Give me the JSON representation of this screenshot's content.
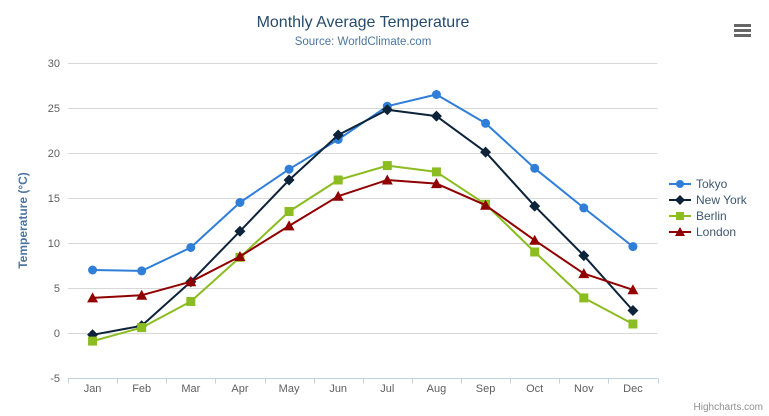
{
  "chart_data": {
    "type": "line",
    "title": "Monthly Average Temperature",
    "subtitle": "Source: WorldClimate.com",
    "xlabel": "",
    "ylabel": "Temperature (°C)",
    "ylim": [
      -5,
      30
    ],
    "yticks": [
      30,
      25,
      20,
      15,
      10,
      5,
      0,
      -5
    ],
    "grid": true,
    "legend_position": "right",
    "categories": [
      "Jan",
      "Feb",
      "Mar",
      "Apr",
      "May",
      "Jun",
      "Jul",
      "Aug",
      "Sep",
      "Oct",
      "Nov",
      "Dec"
    ],
    "series": [
      {
        "name": "Tokyo",
        "color": "#2f7ed8",
        "marker": "circle",
        "values": [
          7.0,
          6.9,
          9.5,
          14.5,
          18.2,
          21.5,
          25.2,
          26.5,
          23.3,
          18.3,
          13.9,
          9.6
        ]
      },
      {
        "name": "New York",
        "color": "#0d233a",
        "marker": "diamond",
        "values": [
          -0.2,
          0.8,
          5.7,
          11.3,
          17.0,
          22.0,
          24.8,
          24.1,
          20.1,
          14.1,
          8.6,
          2.5
        ]
      },
      {
        "name": "Berlin",
        "color": "#8bbc21",
        "marker": "square",
        "values": [
          -0.9,
          0.6,
          3.5,
          8.4,
          13.5,
          17.0,
          18.6,
          17.9,
          14.3,
          9.0,
          3.9,
          1.0
        ]
      },
      {
        "name": "London",
        "color": "#910000",
        "marker": "triangle",
        "values": [
          3.9,
          4.2,
          5.7,
          8.5,
          11.9,
          15.2,
          17.0,
          16.6,
          14.2,
          10.3,
          6.6,
          4.8
        ]
      }
    ]
  },
  "export_menu": {
    "icon": "hamburger-icon"
  },
  "credits": {
    "label": "Highcharts.com"
  },
  "theme": {
    "title_color": "#274b6d",
    "subtitle_color": "#4d759e",
    "axis_title_color": "#4d759e",
    "axis_label_color": "#606060",
    "axis_line_color": "#c0d0e0",
    "gridline_color": "#d8d8d8",
    "legend_text_color": "#3e576f",
    "credits_color": "#909090",
    "menu_icon_color": "#666666",
    "background": "#ffffff"
  }
}
